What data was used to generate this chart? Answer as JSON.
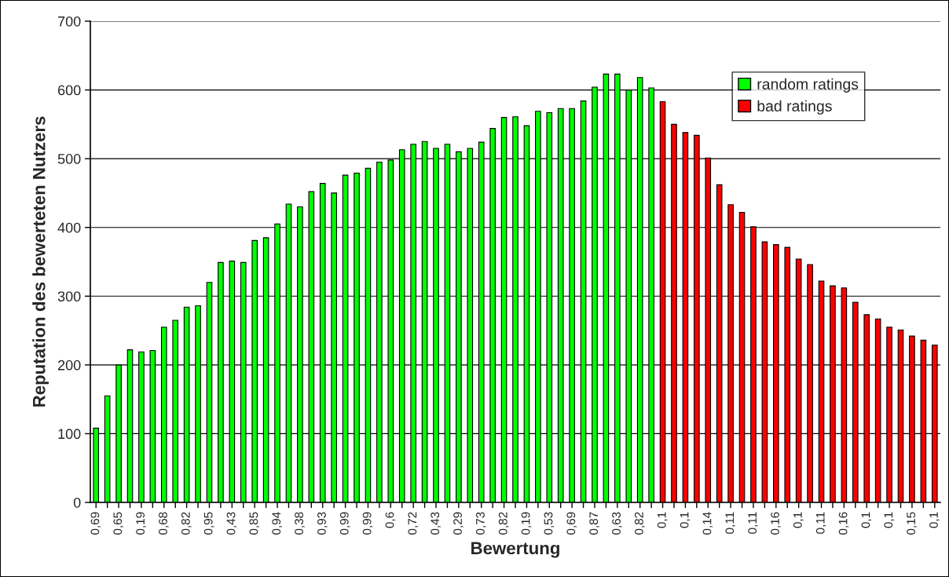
{
  "chart_data": {
    "type": "bar",
    "xlabel": "Bewertung",
    "ylabel": "Reputation des bewerteten Nutzers",
    "categories": [
      "0,69",
      null,
      "0,65",
      null,
      "0,19",
      null,
      "0,68",
      null,
      "0,82",
      null,
      "0,95",
      null,
      "0,43",
      null,
      "0,85",
      null,
      "0,94",
      null,
      "0,38",
      null,
      "0,93",
      null,
      "0,99",
      null,
      "0,99",
      null,
      "0,6",
      null,
      "0,72",
      null,
      "0,43",
      null,
      "0,29",
      null,
      "0,73",
      null,
      "0,82",
      null,
      "0,19",
      null,
      "0,53",
      null,
      "0,69",
      null,
      "0,87",
      null,
      "0,63",
      null,
      "0,82",
      null,
      "0,1",
      null,
      "0,1",
      null,
      "0,14",
      null,
      "0,11",
      null,
      "0,11",
      null,
      "0,16",
      null,
      "0,1",
      null,
      "0,11",
      null,
      "0,16",
      null,
      "0,1",
      null,
      "0,1",
      null,
      "0,15",
      null,
      "0,1"
    ],
    "series": [
      {
        "name": "random ratings",
        "color": "#00ff00",
        "values": [
          108,
          155,
          200,
          222,
          219,
          221,
          255,
          265,
          284,
          286,
          320,
          349,
          351,
          349,
          381,
          385,
          405,
          434,
          430,
          452,
          464,
          450,
          476,
          479,
          486,
          495,
          498,
          513,
          521,
          525,
          515,
          521,
          510,
          515,
          524,
          544,
          560,
          561,
          548,
          569,
          567,
          573,
          573,
          584,
          604,
          623,
          623,
          600,
          618,
          603,
          null,
          null,
          null,
          null,
          null,
          null,
          null,
          null,
          null,
          null,
          null,
          null,
          null,
          null,
          null,
          null,
          null,
          null,
          null,
          null,
          null,
          null,
          null,
          null,
          null
        ]
      },
      {
        "name": "bad ratings",
        "color": "#ff0000",
        "values": [
          null,
          null,
          null,
          null,
          null,
          null,
          null,
          null,
          null,
          null,
          null,
          null,
          null,
          null,
          null,
          null,
          null,
          null,
          null,
          null,
          null,
          null,
          null,
          null,
          null,
          null,
          null,
          null,
          null,
          null,
          null,
          null,
          null,
          null,
          null,
          null,
          null,
          null,
          null,
          null,
          null,
          null,
          null,
          null,
          null,
          null,
          null,
          null,
          null,
          null,
          583,
          550,
          538,
          534,
          501,
          462,
          433,
          422,
          401,
          379,
          375,
          371,
          354,
          346,
          322,
          315,
          312,
          291,
          273,
          267,
          255,
          251,
          242,
          236,
          229
        ]
      }
    ],
    "ylim": [
      0,
      700
    ],
    "yticks": [
      0,
      100,
      200,
      300,
      400,
      500,
      600,
      700
    ],
    "grid": "y",
    "legend": "top right"
  }
}
